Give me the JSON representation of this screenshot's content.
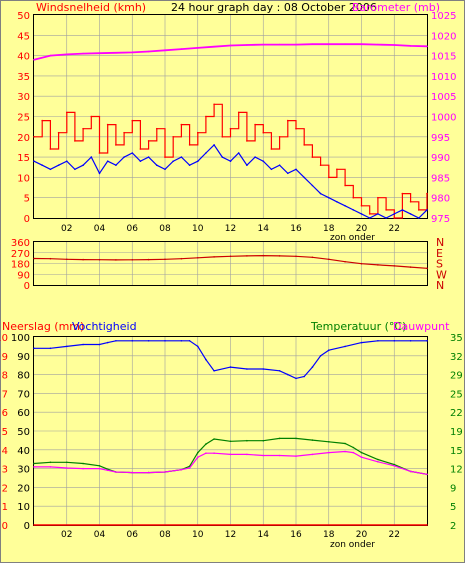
{
  "header": {
    "title": "24 hour graph day : 08 October 2006",
    "wind_label": "Windsnelheid (kmh)",
    "baro_label": "Barometer (mb)"
  },
  "bottom_header": {
    "rain_label": "Neerslag (mm)",
    "humidity_label": "Vochtigheid",
    "temp_label": "Temperatuur (°C)",
    "dew_label": "Dauwpunt"
  },
  "x_axis": {
    "caption": "zon onder",
    "ticks": [
      "02",
      "04",
      "06",
      "08",
      "10",
      "12",
      "14",
      "16",
      "18",
      "20",
      "22"
    ]
  },
  "colors": {
    "background": "#ffff99",
    "grid": "#a0a0a0",
    "wind_avg": "#0000ff",
    "wind_gust": "#ff0000",
    "barometer": "#ff00ff",
    "direction": "#cc0000",
    "humidity": "#0000ff",
    "temperature": "#008000",
    "dewpoint": "#ff00ff",
    "rain": "#ff0000",
    "left_text": "#ff0000",
    "right_text": "#008000",
    "compass_text": "#cc0000"
  },
  "chart_data": [
    {
      "type": "line",
      "title": "24 hour graph day : 08 October 2006",
      "x_range": [
        0,
        24
      ],
      "ylabel_left": "Windsnelheid (kmh)",
      "ylim_left": [
        0,
        50
      ],
      "yticks_left": [
        "0",
        "5",
        "10",
        "15",
        "20",
        "25",
        "30",
        "35",
        "40",
        "45",
        "50"
      ],
      "ylabel_right": "Barometer (mb)",
      "ylim_right": [
        975,
        1025
      ],
      "yticks_right": [
        "975",
        "980",
        "985",
        "990",
        "995",
        "1000",
        "1005",
        "1010",
        "1015",
        "1020",
        "1025"
      ],
      "grid": true,
      "series": [
        {
          "name": "Barometer (mb)",
          "axis": "right",
          "x": [
            0,
            1,
            2,
            3,
            4,
            5,
            6,
            7,
            8,
            9,
            10,
            11,
            12,
            13,
            14,
            15,
            16,
            17,
            18,
            19,
            20,
            21,
            22,
            23,
            24
          ],
          "values": [
            1014,
            1015,
            1015.3,
            1015.5,
            1015.6,
            1015.7,
            1015.8,
            1016,
            1016.3,
            1016.6,
            1016.9,
            1017.2,
            1017.5,
            1017.6,
            1017.7,
            1017.7,
            1017.7,
            1017.8,
            1017.8,
            1017.8,
            1017.8,
            1017.7,
            1017.6,
            1017.4,
            1017.3
          ]
        },
        {
          "name": "gust",
          "axis": "left",
          "x": [
            0,
            0.5,
            1,
            1.5,
            2,
            2.5,
            3,
            3.5,
            4,
            4.5,
            5,
            5.5,
            6,
            6.5,
            7,
            7.5,
            8,
            8.5,
            9,
            9.5,
            10,
            10.5,
            11,
            11.5,
            12,
            12.5,
            13,
            13.5,
            14,
            14.5,
            15,
            15.5,
            16,
            16.5,
            17,
            17.5,
            18,
            18.5,
            19,
            19.5,
            20,
            20.5,
            21,
            21.5,
            22,
            22.5,
            23,
            23.5,
            24
          ],
          "values": [
            20,
            24,
            17,
            21,
            26,
            19,
            22,
            25,
            16,
            23,
            18,
            21,
            24,
            17,
            19,
            22,
            15,
            20,
            23,
            18,
            21,
            25,
            28,
            20,
            22,
            26,
            19,
            23,
            21,
            17,
            20,
            24,
            22,
            18,
            15,
            13,
            10,
            12,
            8,
            5,
            3,
            1,
            5,
            2,
            0,
            6,
            4,
            2,
            6
          ]
        },
        {
          "name": "average",
          "axis": "left",
          "x": [
            0,
            0.5,
            1,
            1.5,
            2,
            2.5,
            3,
            3.5,
            4,
            4.5,
            5,
            5.5,
            6,
            6.5,
            7,
            7.5,
            8,
            8.5,
            9,
            9.5,
            10,
            10.5,
            11,
            11.5,
            12,
            12.5,
            13,
            13.5,
            14,
            14.5,
            15,
            15.5,
            16,
            16.5,
            17,
            17.5,
            18,
            18.5,
            19,
            19.5,
            20,
            20.5,
            21,
            21.5,
            22,
            22.5,
            23,
            23.5,
            24
          ],
          "values": [
            14,
            13,
            12,
            13,
            14,
            12,
            13,
            15,
            11,
            14,
            13,
            15,
            16,
            14,
            15,
            13,
            12,
            14,
            15,
            13,
            14,
            16,
            18,
            15,
            14,
            16,
            13,
            15,
            14,
            12,
            13,
            11,
            12,
            10,
            8,
            6,
            5,
            4,
            3,
            2,
            1,
            0,
            1,
            0,
            1,
            2,
            1,
            0,
            2
          ]
        }
      ]
    },
    {
      "type": "line",
      "ylim": [
        0,
        360
      ],
      "yticks": [
        "0",
        "90",
        "180",
        "270",
        "360"
      ],
      "compass_labels": [
        "N",
        "W",
        "S",
        "E",
        "N"
      ],
      "grid": true,
      "series": [
        {
          "name": "direction",
          "x": [
            0,
            1,
            2,
            3,
            4,
            5,
            6,
            7,
            8,
            9,
            10,
            11,
            12,
            13,
            14,
            15,
            16,
            17,
            18,
            19,
            20,
            21,
            22,
            23,
            24
          ],
          "values": [
            222,
            220,
            215,
            213,
            212,
            210,
            211,
            213,
            215,
            220,
            228,
            235,
            240,
            244,
            246,
            244,
            240,
            232,
            215,
            195,
            178,
            168,
            160,
            150,
            140
          ]
        }
      ]
    },
    {
      "type": "line",
      "x_range": [
        0,
        24
      ],
      "ylabel_left": "Neerslag (mm Vochtigheid",
      "ylim_left": [
        0,
        100
      ],
      "yticks_left_outer": [
        "0",
        "1",
        "2",
        "3",
        "4",
        "5",
        "6",
        "7",
        "8",
        "9",
        "10"
      ],
      "yticks_left_inner": [
        "0",
        "10",
        "20",
        "30",
        "40",
        "50",
        "60",
        "70",
        "80",
        "90",
        "100"
      ],
      "ylabel_right": "Temperatuur (°C)Dauwpunt",
      "ylim_right": [
        2,
        35
      ],
      "yticks_right": [
        "2",
        "5",
        "9",
        "12",
        "15",
        "19",
        "22",
        "25",
        "29",
        "32",
        "35"
      ],
      "grid": true,
      "series": [
        {
          "name": "Vochtigheid",
          "axis": "left",
          "x": [
            0,
            1,
            2,
            3,
            4,
            4.5,
            5,
            6,
            7,
            8,
            9,
            9.5,
            10,
            10.5,
            11,
            12,
            13,
            14,
            15,
            15.5,
            16,
            16.5,
            17,
            17.5,
            18,
            19,
            20,
            21,
            22,
            23,
            24
          ],
          "values": [
            94,
            94,
            95,
            96,
            96,
            97,
            98,
            98,
            98,
            98,
            98,
            98,
            95,
            88,
            82,
            84,
            83,
            83,
            82,
            80,
            78,
            79,
            84,
            90,
            93,
            95,
            97,
            98,
            98,
            98,
            98
          ]
        },
        {
          "name": "Temperatuur",
          "axis": "right",
          "x": [
            0,
            1,
            2,
            3,
            4,
            4.5,
            5,
            6,
            7,
            8,
            9,
            9.5,
            10,
            10.5,
            11,
            12,
            13,
            14,
            15,
            16,
            17,
            18,
            19,
            19.5,
            20,
            21,
            22,
            23,
            24
          ],
          "values": [
            12.8,
            13.0,
            13.0,
            12.8,
            12.4,
            11.8,
            11.3,
            11.2,
            11.2,
            11.3,
            11.7,
            12.3,
            14.7,
            16.2,
            17.1,
            16.7,
            16.8,
            16.8,
            17.2,
            17.2,
            16.9,
            16.6,
            16.3,
            15.6,
            14.7,
            13.5,
            12.6,
            11.4,
            10.9
          ]
        },
        {
          "name": "Dauwpunt",
          "axis": "right",
          "x": [
            0,
            1,
            2,
            3,
            4,
            4.5,
            5,
            6,
            7,
            8,
            9,
            9.5,
            10,
            10.5,
            11,
            12,
            13,
            14,
            15,
            16,
            17,
            18,
            19,
            19.5,
            20,
            21,
            22,
            23,
            24
          ],
          "values": [
            12.2,
            12.2,
            12.0,
            11.9,
            11.9,
            11.6,
            11.3,
            11.2,
            11.2,
            11.3,
            11.7,
            12.0,
            13.9,
            14.6,
            14.6,
            14.4,
            14.4,
            14.2,
            14.2,
            14.1,
            14.4,
            14.7,
            14.9,
            14.7,
            13.9,
            13.1,
            12.4,
            11.4,
            10.9
          ]
        },
        {
          "name": "Neerslag",
          "axis": "left",
          "x": [
            0,
            24
          ],
          "values": [
            0,
            0
          ]
        }
      ]
    }
  ]
}
